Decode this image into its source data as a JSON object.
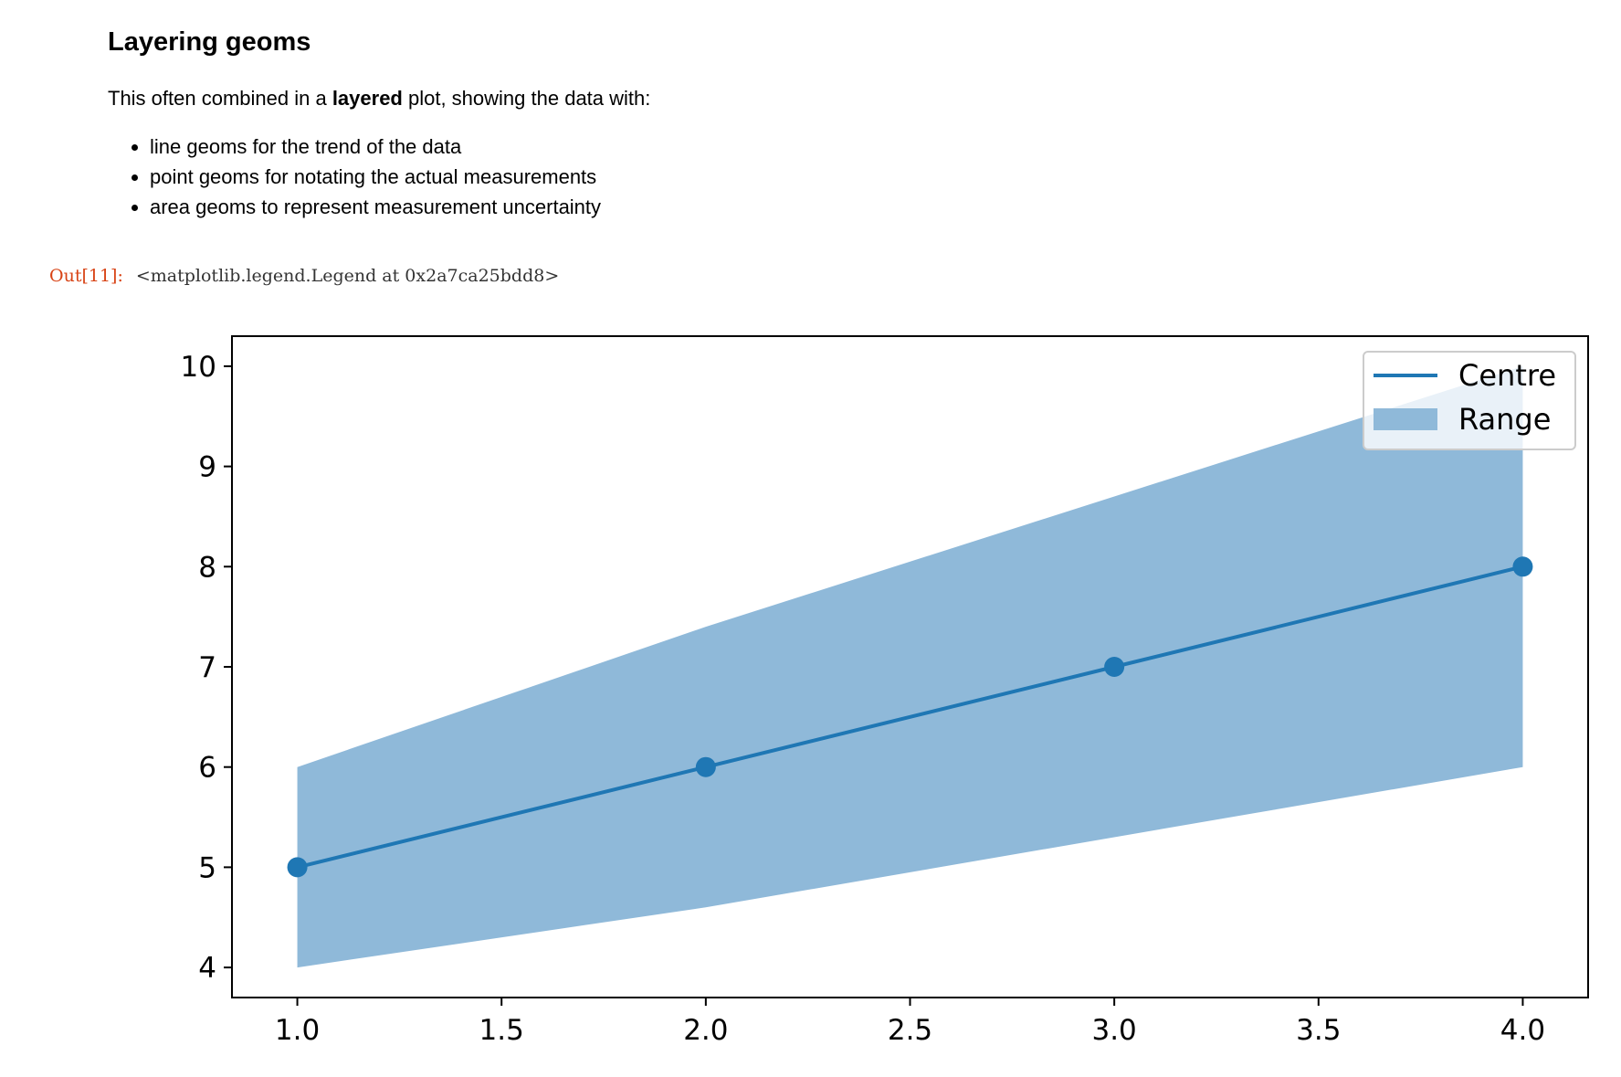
{
  "markdown": {
    "heading": "Layering geoms",
    "intro_before": "This often combined in a ",
    "intro_bold": "layered",
    "intro_after": " plot, showing the data with:",
    "bullets": [
      "line geoms for the trend of the data",
      "point geoms for notating the actual measurements",
      "area geoms to represent measurement uncertainty"
    ]
  },
  "output": {
    "prompt": "Out[11]:",
    "text": "<matplotlib.legend.Legend at 0x2a7ca25bdd8>"
  },
  "chart_data": {
    "type": "line",
    "x": [
      1.0,
      2.0,
      3.0,
      4.0
    ],
    "series": [
      {
        "name": "Centre",
        "kind": "line",
        "markers": true,
        "values": [
          5,
          6,
          7,
          8
        ],
        "color": "#1f77b4"
      },
      {
        "name": "Range",
        "kind": "area",
        "lower": [
          4,
          4.6,
          5.3,
          6
        ],
        "upper": [
          6,
          7.4,
          8.7,
          10
        ],
        "color": "#8fb9d9"
      }
    ],
    "xlim": [
      0.84,
      4.16
    ],
    "ylim": [
      3.7,
      10.3
    ],
    "xticks": [
      "1.0",
      "1.5",
      "2.0",
      "2.5",
      "3.0",
      "3.5",
      "4.0"
    ],
    "yticks": [
      "4",
      "5",
      "6",
      "7",
      "8",
      "9",
      "10"
    ],
    "legend": {
      "position": "upper-right",
      "entries": [
        "Centre",
        "Range"
      ]
    },
    "grid": false
  }
}
